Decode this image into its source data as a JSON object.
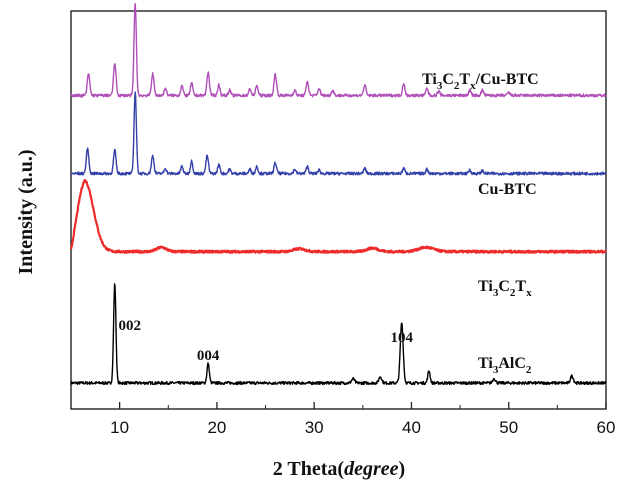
{
  "chart_data": {
    "type": "line",
    "xlabel_main": "2 Theta(",
    "xlabel_italic": "degree",
    "xlabel_close": ")",
    "ylabel": "Intensity  (a.u.)",
    "xlim": [
      5,
      60
    ],
    "xticks": [
      "10",
      "20",
      "30",
      "40",
      "50",
      "60"
    ],
    "xtick_values": [
      10,
      20,
      30,
      40,
      50,
      60
    ],
    "grid": false,
    "series": [
      {
        "name": "Ti3AlC2",
        "label_parts": [
          [
            "Ti",
            ""
          ],
          [
            "3",
            "sub"
          ],
          [
            "AlC",
            ""
          ],
          [
            "2",
            "sub"
          ]
        ],
        "color": "#000000",
        "baseline": 0.0,
        "noise": 0.004,
        "peaks": [
          {
            "x": 9.5,
            "h": 0.28,
            "w": 0.12
          },
          {
            "x": 19.1,
            "h": 0.055,
            "w": 0.12
          },
          {
            "x": 34.0,
            "h": 0.012,
            "w": 0.15
          },
          {
            "x": 36.8,
            "h": 0.018,
            "w": 0.15
          },
          {
            "x": 39.0,
            "h": 0.17,
            "w": 0.15
          },
          {
            "x": 41.8,
            "h": 0.035,
            "w": 0.12
          },
          {
            "x": 48.5,
            "h": 0.012,
            "w": 0.15
          },
          {
            "x": 56.5,
            "h": 0.02,
            "w": 0.15
          }
        ],
        "hump": null
      },
      {
        "name": "Ti3C2Tx",
        "label_parts": [
          [
            "Ti",
            ""
          ],
          [
            "3",
            "sub"
          ],
          [
            "C",
            ""
          ],
          [
            "2",
            "sub"
          ],
          [
            "T",
            ""
          ],
          [
            "x",
            "sub"
          ]
        ],
        "color": "#ee2a2a",
        "baseline": 0.37,
        "noise": 0.003,
        "peaks": [
          {
            "x": 14.3,
            "h": 0.012,
            "w": 0.5
          },
          {
            "x": 28.5,
            "h": 0.008,
            "w": 0.6
          },
          {
            "x": 36.0,
            "h": 0.01,
            "w": 0.6
          },
          {
            "x": 41.5,
            "h": 0.012,
            "w": 0.8
          }
        ],
        "hump": {
          "x": 6.4,
          "h": 0.2,
          "w": 0.9,
          "rise": 0.055
        }
      },
      {
        "name": "Cu-BTC",
        "label_parts": [
          [
            "Cu-BTC",
            ""
          ]
        ],
        "color": "#3340a8",
        "baseline": 0.59,
        "noise": 0.004,
        "peaks": [
          {
            "x": 6.7,
            "h": 0.07,
            "w": 0.13
          },
          {
            "x": 9.5,
            "h": 0.065,
            "w": 0.13
          },
          {
            "x": 11.6,
            "h": 0.23,
            "w": 0.12
          },
          {
            "x": 13.4,
            "h": 0.05,
            "w": 0.13
          },
          {
            "x": 14.7,
            "h": 0.015,
            "w": 0.12
          },
          {
            "x": 16.4,
            "h": 0.02,
            "w": 0.12
          },
          {
            "x": 17.4,
            "h": 0.035,
            "w": 0.12
          },
          {
            "x": 19.0,
            "h": 0.05,
            "w": 0.13
          },
          {
            "x": 20.2,
            "h": 0.025,
            "w": 0.12
          },
          {
            "x": 21.3,
            "h": 0.012,
            "w": 0.12
          },
          {
            "x": 23.4,
            "h": 0.012,
            "w": 0.12
          },
          {
            "x": 24.1,
            "h": 0.02,
            "w": 0.12
          },
          {
            "x": 26.0,
            "h": 0.03,
            "w": 0.13
          },
          {
            "x": 28.0,
            "h": 0.012,
            "w": 0.12
          },
          {
            "x": 29.3,
            "h": 0.02,
            "w": 0.12
          },
          {
            "x": 30.5,
            "h": 0.01,
            "w": 0.12
          },
          {
            "x": 35.2,
            "h": 0.015,
            "w": 0.12
          },
          {
            "x": 39.2,
            "h": 0.015,
            "w": 0.12
          },
          {
            "x": 41.6,
            "h": 0.012,
            "w": 0.12
          },
          {
            "x": 46.0,
            "h": 0.01,
            "w": 0.12
          },
          {
            "x": 47.3,
            "h": 0.008,
            "w": 0.12
          }
        ],
        "hump": null
      },
      {
        "name": "Ti3C2Tx/Cu-BTC",
        "label_parts": [
          [
            "Ti",
            ""
          ],
          [
            "3",
            "sub"
          ],
          [
            "C",
            ""
          ],
          [
            "2",
            "sub"
          ],
          [
            "T",
            ""
          ],
          [
            "x",
            "sub"
          ],
          [
            "/Cu-BTC",
            ""
          ]
        ],
        "color": "#b04fb8",
        "baseline": 0.81,
        "noise": 0.004,
        "peaks": [
          {
            "x": 6.8,
            "h": 0.06,
            "w": 0.13
          },
          {
            "x": 9.5,
            "h": 0.09,
            "w": 0.13
          },
          {
            "x": 11.6,
            "h": 0.26,
            "w": 0.12
          },
          {
            "x": 13.4,
            "h": 0.06,
            "w": 0.13
          },
          {
            "x": 14.7,
            "h": 0.02,
            "w": 0.12
          },
          {
            "x": 16.4,
            "h": 0.028,
            "w": 0.12
          },
          {
            "x": 17.4,
            "h": 0.035,
            "w": 0.12
          },
          {
            "x": 19.1,
            "h": 0.065,
            "w": 0.13
          },
          {
            "x": 20.2,
            "h": 0.03,
            "w": 0.12
          },
          {
            "x": 21.3,
            "h": 0.015,
            "w": 0.12
          },
          {
            "x": 23.4,
            "h": 0.018,
            "w": 0.12
          },
          {
            "x": 24.1,
            "h": 0.028,
            "w": 0.12
          },
          {
            "x": 26.0,
            "h": 0.06,
            "w": 0.13
          },
          {
            "x": 28.0,
            "h": 0.015,
            "w": 0.12
          },
          {
            "x": 29.3,
            "h": 0.04,
            "w": 0.12
          },
          {
            "x": 30.5,
            "h": 0.02,
            "w": 0.12
          },
          {
            "x": 31.9,
            "h": 0.015,
            "w": 0.12
          },
          {
            "x": 35.2,
            "h": 0.03,
            "w": 0.12
          },
          {
            "x": 39.2,
            "h": 0.035,
            "w": 0.12
          },
          {
            "x": 41.6,
            "h": 0.02,
            "w": 0.12
          },
          {
            "x": 42.8,
            "h": 0.012,
            "w": 0.12
          },
          {
            "x": 46.0,
            "h": 0.015,
            "w": 0.12
          },
          {
            "x": 47.3,
            "h": 0.015,
            "w": 0.12
          },
          {
            "x": 50.0,
            "h": 0.008,
            "w": 0.12
          }
        ],
        "hump": null
      }
    ],
    "annotations": [
      {
        "text": "002",
        "x": 9.5
      },
      {
        "text": "004",
        "x": 19.1
      },
      {
        "text": "104",
        "x": 39.0
      }
    ]
  }
}
